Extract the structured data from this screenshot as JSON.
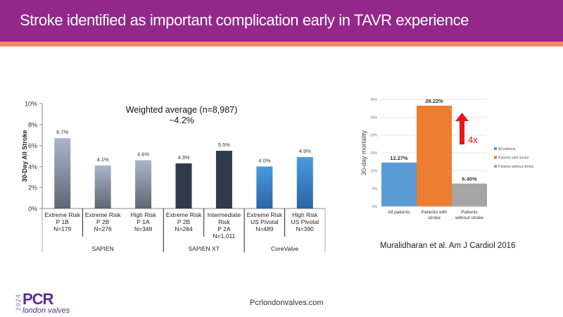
{
  "slide": {
    "title": "Stroke identified as important complication early in TAVR experience",
    "citation": "Muralidharan  et al. Am J Cardiol 2016",
    "url": "Pcrlondonvalves.com",
    "logo": {
      "year": "2024",
      "brand": "PCR",
      "sub": "london valves"
    }
  },
  "chart_data": [
    {
      "type": "bar",
      "title": "",
      "annotation": [
        "Weighted average (n=8,987)",
        "~4.2%"
      ],
      "ylabel": "30-Day All Stroke",
      "ylim": [
        0,
        10
      ],
      "yticks": [
        "0%",
        "2%",
        "4%",
        "6%",
        "8%",
        "10%"
      ],
      "categories": [
        [
          "Extreme Risk",
          "P 1B",
          "N=179"
        ],
        [
          "Extreme Risk",
          "P 2B",
          "N=276"
        ],
        [
          "High Risk",
          "P 1A",
          "N=348"
        ],
        [
          "Extreme Risk",
          "P 2B",
          "N=284"
        ],
        [
          "Intermediate",
          "Risk",
          "P 2A",
          "N=1,011"
        ],
        [
          "Extreme Risk",
          "US Pivotal",
          "N=489"
        ],
        [
          "High Risk",
          "US Pivotal",
          "N=390"
        ]
      ],
      "values": [
        6.7,
        4.1,
        4.6,
        4.3,
        5.5,
        4.0,
        4.9
      ],
      "labels": [
        "6.7%",
        "4.1%",
        "4.6%",
        "4.3%",
        "5.5%",
        "4.0%",
        "4.9%"
      ],
      "groups": [
        {
          "name": "SAPIEN",
          "count": 3,
          "color": "#9aa6b8"
        },
        {
          "name": "SAPIEN XT",
          "count": 2,
          "color": "#2f3a4c"
        },
        {
          "name": "CoreValve",
          "count": 2,
          "color": "#3f86c9"
        }
      ]
    },
    {
      "type": "bar",
      "ylabel": "30-day mortality",
      "ylim": [
        0,
        30
      ],
      "yticks": [
        "0%",
        "5%",
        "10%",
        "15%",
        "20%",
        "25%",
        "30%"
      ],
      "categories": [
        [
          "All patients"
        ],
        [
          "Patients with",
          "stroke"
        ],
        [
          "Patients",
          "without stroke"
        ]
      ],
      "values": [
        12.27,
        28.22,
        6.4
      ],
      "labels": [
        "12.27%",
        "28.22%",
        "6.40%"
      ],
      "colors": [
        "#5b9bd5",
        "#ed7d31",
        "#a5a5a5"
      ],
      "legend": [
        "All patients",
        "Patients with stroke",
        "Patients without stroke"
      ],
      "legend_position": "right",
      "arrow_label": "4x",
      "arrow_color": "#e8151b"
    }
  ]
}
